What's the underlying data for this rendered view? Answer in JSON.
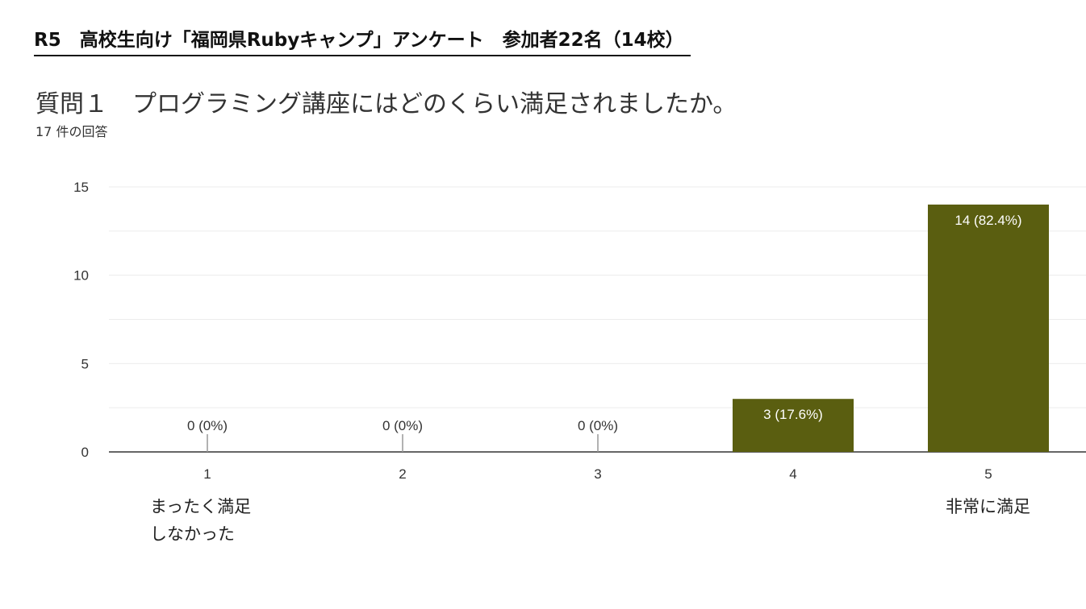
{
  "header": {
    "title": "R5　高校生向け「福岡県Rubyキャンプ」アンケート　参加者22名（14校）"
  },
  "question": {
    "text": "質問１　プログラミング講座にはどのくらい満足されましたか。",
    "response_count": "17 件の回答"
  },
  "chart_data": {
    "type": "bar",
    "categories": [
      "1",
      "2",
      "3",
      "4",
      "5"
    ],
    "values": [
      0,
      0,
      0,
      3,
      14
    ],
    "data_labels": [
      "0 (0%)",
      "0 (0%)",
      "0 (0%)",
      "3 (17.6%)",
      "14 (82.4%)"
    ],
    "ylim": [
      0,
      15
    ],
    "yticks": [
      0,
      5,
      10,
      15
    ],
    "ytick_labels": [
      "0",
      "5",
      "10",
      "15"
    ],
    "grid": true,
    "bar_color": "#5a5e10",
    "endpoint_labels": {
      "low": [
        "まったく満足",
        "しなかった"
      ],
      "high": [
        "非常に満足"
      ]
    }
  }
}
